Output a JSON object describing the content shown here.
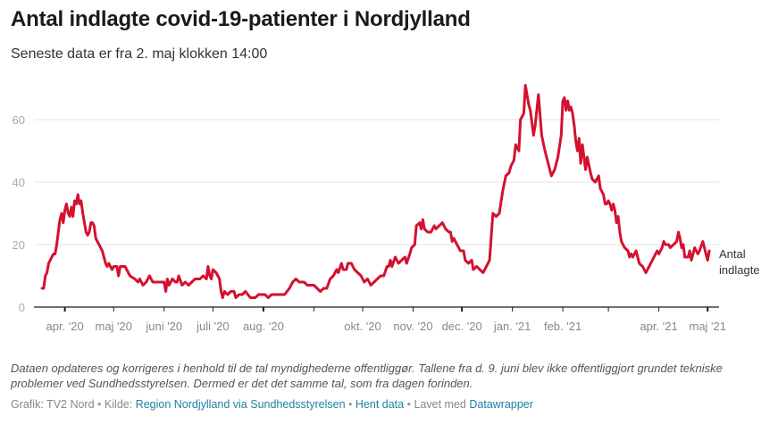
{
  "header": {
    "title": "Antal indlagte covid-19-patienter i Nordjylland",
    "subtitle": "Seneste data er fra 2. maj klokken 14:00"
  },
  "notes": "Dataen opdateres og korrigeres  i henhold til de tal myndighederne offentliggør. Tallene fra d. 9. juni blev ikke offentliggjort grundet tekniske problemer ved Sundhedsstyrelsen. Dermed er det det samme tal, som fra dagen forinden.",
  "footer": {
    "grafik_label": "Grafik: TV2 Nord",
    "kilde_label": "Kilde:",
    "source_link": "Region Nordjylland via Sundhedsstyrelsen",
    "data_link": "Hent data",
    "made_with_label": "Lavet med",
    "tool_link": "Datawrapper",
    "separator": "•"
  },
  "colors": {
    "line": "#d4112f",
    "grid": "#e3e3e3",
    "axis": "#1a1a1a",
    "link": "#1d81a2"
  },
  "chart_data": {
    "type": "line",
    "title": "Antal indlagte covid-19-patienter i Nordjylland",
    "xlabel": "",
    "ylabel": "",
    "ylim": [
      0,
      70
    ],
    "yticks": [
      0,
      20,
      40,
      60
    ],
    "grid": true,
    "xlim": [
      "2020-03-13",
      "2021-05-08"
    ],
    "xticks": [
      {
        "date": "2020-04-01",
        "label": "apr. '20"
      },
      {
        "date": "2020-05-01",
        "label": "maj '20"
      },
      {
        "date": "2020-06-01",
        "label": "juni '20"
      },
      {
        "date": "2020-07-01",
        "label": "juli '20"
      },
      {
        "date": "2020-08-01",
        "label": "aug. '20"
      },
      {
        "date": "2020-09-01",
        "label": ""
      },
      {
        "date": "2020-10-01",
        "label": "okt. '20"
      },
      {
        "date": "2020-11-01",
        "label": "nov. '20"
      },
      {
        "date": "2020-12-01",
        "label": "dec. '20"
      },
      {
        "date": "2021-01-01",
        "label": "jan. '21"
      },
      {
        "date": "2021-02-01",
        "label": "feb. '21"
      },
      {
        "date": "2021-03-01",
        "label": ""
      },
      {
        "date": "2021-04-01",
        "label": "apr. '21"
      },
      {
        "date": "2021-05-01",
        "label": "maj '21"
      }
    ],
    "series": [
      {
        "name": "Antal indlagte",
        "label_lines": [
          "Antal",
          "indlagte"
        ],
        "points": [
          [
            "2020-03-18",
            6
          ],
          [
            "2020-03-19",
            6
          ],
          [
            "2020-03-20",
            10
          ],
          [
            "2020-03-21",
            11
          ],
          [
            "2020-03-22",
            14
          ],
          [
            "2020-03-24",
            16
          ],
          [
            "2020-03-25",
            17
          ],
          [
            "2020-03-26",
            17
          ],
          [
            "2020-03-27",
            20
          ],
          [
            "2020-03-28",
            24
          ],
          [
            "2020-03-29",
            28
          ],
          [
            "2020-03-30",
            30
          ],
          [
            "2020-03-31",
            27
          ],
          [
            "2020-04-01",
            31
          ],
          [
            "2020-04-02",
            33
          ],
          [
            "2020-04-03",
            30
          ],
          [
            "2020-04-04",
            29
          ],
          [
            "2020-04-05",
            32
          ],
          [
            "2020-04-06",
            29
          ],
          [
            "2020-04-07",
            34
          ],
          [
            "2020-04-08",
            33
          ],
          [
            "2020-04-09",
            36
          ],
          [
            "2020-04-10",
            33
          ],
          [
            "2020-04-11",
            34
          ],
          [
            "2020-04-12",
            30
          ],
          [
            "2020-04-13",
            27
          ],
          [
            "2020-04-14",
            24
          ],
          [
            "2020-04-15",
            23
          ],
          [
            "2020-04-16",
            24
          ],
          [
            "2020-04-17",
            27
          ],
          [
            "2020-04-18",
            27
          ],
          [
            "2020-04-19",
            26
          ],
          [
            "2020-04-20",
            22
          ],
          [
            "2020-04-22",
            20
          ],
          [
            "2020-04-24",
            18
          ],
          [
            "2020-04-26",
            14
          ],
          [
            "2020-04-27",
            13
          ],
          [
            "2020-04-28",
            14
          ],
          [
            "2020-04-30",
            12
          ],
          [
            "2020-05-01",
            13
          ],
          [
            "2020-05-03",
            13
          ],
          [
            "2020-05-04",
            10
          ],
          [
            "2020-05-05",
            13
          ],
          [
            "2020-05-08",
            13
          ],
          [
            "2020-05-11",
            10
          ],
          [
            "2020-05-14",
            9
          ],
          [
            "2020-05-16",
            8
          ],
          [
            "2020-05-17",
            9
          ],
          [
            "2020-05-19",
            7
          ],
          [
            "2020-05-21",
            8
          ],
          [
            "2020-05-23",
            10
          ],
          [
            "2020-05-25",
            8
          ],
          [
            "2020-05-28",
            8
          ],
          [
            "2020-06-01",
            8
          ],
          [
            "2020-06-02",
            5
          ],
          [
            "2020-06-03",
            9
          ],
          [
            "2020-06-04",
            7
          ],
          [
            "2020-06-06",
            9
          ],
          [
            "2020-06-08",
            8
          ],
          [
            "2020-06-09",
            8
          ],
          [
            "2020-06-10",
            10
          ],
          [
            "2020-06-12",
            7
          ],
          [
            "2020-06-14",
            8
          ],
          [
            "2020-06-16",
            7
          ],
          [
            "2020-06-18",
            8
          ],
          [
            "2020-06-20",
            9
          ],
          [
            "2020-06-23",
            9
          ],
          [
            "2020-06-25",
            10
          ],
          [
            "2020-06-27",
            9
          ],
          [
            "2020-06-28",
            13
          ],
          [
            "2020-06-29",
            10
          ],
          [
            "2020-06-30",
            9
          ],
          [
            "2020-07-01",
            12
          ],
          [
            "2020-07-03",
            11
          ],
          [
            "2020-07-05",
            9
          ],
          [
            "2020-07-06",
            5
          ],
          [
            "2020-07-07",
            3
          ],
          [
            "2020-07-08",
            5
          ],
          [
            "2020-07-10",
            4
          ],
          [
            "2020-07-12",
            5
          ],
          [
            "2020-07-14",
            5
          ],
          [
            "2020-07-15",
            3
          ],
          [
            "2020-07-17",
            4
          ],
          [
            "2020-07-19",
            4
          ],
          [
            "2020-07-21",
            5
          ],
          [
            "2020-07-24",
            3
          ],
          [
            "2020-07-27",
            3
          ],
          [
            "2020-07-29",
            4
          ],
          [
            "2020-07-31",
            4
          ],
          [
            "2020-08-02",
            4
          ],
          [
            "2020-08-04",
            3
          ],
          [
            "2020-08-06",
            4
          ],
          [
            "2020-08-10",
            4
          ],
          [
            "2020-08-14",
            4
          ],
          [
            "2020-08-17",
            6
          ],
          [
            "2020-08-19",
            8
          ],
          [
            "2020-08-21",
            9
          ],
          [
            "2020-08-23",
            8
          ],
          [
            "2020-08-26",
            8
          ],
          [
            "2020-08-28",
            7
          ],
          [
            "2020-09-01",
            7
          ],
          [
            "2020-09-03",
            6
          ],
          [
            "2020-09-05",
            5
          ],
          [
            "2020-09-07",
            6
          ],
          [
            "2020-09-09",
            6
          ],
          [
            "2020-09-11",
            9
          ],
          [
            "2020-09-13",
            10
          ],
          [
            "2020-09-15",
            12
          ],
          [
            "2020-09-16",
            11
          ],
          [
            "2020-09-18",
            14
          ],
          [
            "2020-09-19",
            12
          ],
          [
            "2020-09-21",
            12
          ],
          [
            "2020-09-22",
            14
          ],
          [
            "2020-09-24",
            14
          ],
          [
            "2020-09-26",
            12
          ],
          [
            "2020-09-28",
            11
          ],
          [
            "2020-09-30",
            10
          ],
          [
            "2020-10-02",
            8
          ],
          [
            "2020-10-04",
            9
          ],
          [
            "2020-10-06",
            7
          ],
          [
            "2020-10-08",
            8
          ],
          [
            "2020-10-10",
            9
          ],
          [
            "2020-10-12",
            10
          ],
          [
            "2020-10-14",
            10
          ],
          [
            "2020-10-16",
            13
          ],
          [
            "2020-10-17",
            13
          ],
          [
            "2020-10-18",
            15
          ],
          [
            "2020-10-19",
            13
          ],
          [
            "2020-10-21",
            16
          ],
          [
            "2020-10-23",
            14
          ],
          [
            "2020-10-25",
            15
          ],
          [
            "2020-10-27",
            16
          ],
          [
            "2020-10-28",
            14
          ],
          [
            "2020-10-30",
            17
          ],
          [
            "2020-10-31",
            19
          ],
          [
            "2020-11-02",
            20
          ],
          [
            "2020-11-03",
            26
          ],
          [
            "2020-11-05",
            27
          ],
          [
            "2020-11-06",
            25
          ],
          [
            "2020-11-07",
            28
          ],
          [
            "2020-11-08",
            25
          ],
          [
            "2020-11-10",
            24
          ],
          [
            "2020-11-12",
            24
          ],
          [
            "2020-11-14",
            26
          ],
          [
            "2020-11-15",
            25
          ],
          [
            "2020-11-17",
            26
          ],
          [
            "2020-11-19",
            27
          ],
          [
            "2020-11-21",
            25
          ],
          [
            "2020-11-23",
            24
          ],
          [
            "2020-11-24",
            24
          ],
          [
            "2020-11-25",
            21
          ],
          [
            "2020-11-26",
            22
          ],
          [
            "2020-11-28",
            20
          ],
          [
            "2020-11-30",
            18
          ],
          [
            "2020-12-02",
            18
          ],
          [
            "2020-12-03",
            15
          ],
          [
            "2020-12-05",
            14
          ],
          [
            "2020-12-07",
            15
          ],
          [
            "2020-12-08",
            12
          ],
          [
            "2020-12-10",
            13
          ],
          [
            "2020-12-12",
            12
          ],
          [
            "2020-12-14",
            11
          ],
          [
            "2020-12-16",
            13
          ],
          [
            "2020-12-18",
            15
          ],
          [
            "2020-12-20",
            30
          ],
          [
            "2020-12-22",
            29
          ],
          [
            "2020-12-24",
            30
          ],
          [
            "2020-12-26",
            37
          ],
          [
            "2020-12-28",
            42
          ],
          [
            "2020-12-30",
            43
          ],
          [
            "2020-12-31",
            45
          ],
          [
            "2021-01-02",
            47
          ],
          [
            "2021-01-03",
            52
          ],
          [
            "2021-01-05",
            50
          ],
          [
            "2021-01-06",
            60
          ],
          [
            "2021-01-08",
            62
          ],
          [
            "2021-01-09",
            71
          ],
          [
            "2021-01-11",
            65
          ],
          [
            "2021-01-12",
            63
          ],
          [
            "2021-01-14",
            55
          ],
          [
            "2021-01-15",
            58
          ],
          [
            "2021-01-17",
            68
          ],
          [
            "2021-01-19",
            55
          ],
          [
            "2021-01-21",
            50
          ],
          [
            "2021-01-22",
            48
          ],
          [
            "2021-01-24",
            44
          ],
          [
            "2021-01-25",
            42
          ],
          [
            "2021-01-27",
            44
          ],
          [
            "2021-01-29",
            48
          ],
          [
            "2021-01-31",
            55
          ],
          [
            "2021-02-01",
            66
          ],
          [
            "2021-02-02",
            67
          ],
          [
            "2021-02-03",
            63
          ],
          [
            "2021-02-04",
            66
          ],
          [
            "2021-02-05",
            63
          ],
          [
            "2021-02-06",
            64
          ],
          [
            "2021-02-07",
            62
          ],
          [
            "2021-02-08",
            58
          ],
          [
            "2021-02-09",
            53
          ],
          [
            "2021-02-10",
            50
          ],
          [
            "2021-02-11",
            54
          ],
          [
            "2021-02-12",
            46
          ],
          [
            "2021-02-13",
            52
          ],
          [
            "2021-02-15",
            44
          ],
          [
            "2021-02-16",
            48
          ],
          [
            "2021-02-18",
            43
          ],
          [
            "2021-02-19",
            41
          ],
          [
            "2021-02-21",
            40
          ],
          [
            "2021-02-23",
            42
          ],
          [
            "2021-02-24",
            38
          ],
          [
            "2021-02-26",
            36
          ],
          [
            "2021-02-27",
            33
          ],
          [
            "2021-02-28",
            33
          ],
          [
            "2021-03-01",
            34
          ],
          [
            "2021-03-02",
            33
          ],
          [
            "2021-03-03",
            31
          ],
          [
            "2021-03-04",
            33
          ],
          [
            "2021-03-05",
            31
          ],
          [
            "2021-03-06",
            27
          ],
          [
            "2021-03-07",
            29
          ],
          [
            "2021-03-08",
            24
          ],
          [
            "2021-03-09",
            21
          ],
          [
            "2021-03-10",
            20
          ],
          [
            "2021-03-11",
            19
          ],
          [
            "2021-03-13",
            18
          ],
          [
            "2021-03-14",
            16
          ],
          [
            "2021-03-15",
            17
          ],
          [
            "2021-03-16",
            16
          ],
          [
            "2021-03-18",
            18
          ],
          [
            "2021-03-19",
            16
          ],
          [
            "2021-03-20",
            14
          ],
          [
            "2021-03-22",
            13
          ],
          [
            "2021-03-24",
            11
          ],
          [
            "2021-03-26",
            13
          ],
          [
            "2021-03-28",
            15
          ],
          [
            "2021-03-30",
            17
          ],
          [
            "2021-03-31",
            18
          ],
          [
            "2021-04-01",
            17
          ],
          [
            "2021-04-03",
            19
          ],
          [
            "2021-04-04",
            21
          ],
          [
            "2021-04-05",
            20
          ],
          [
            "2021-04-07",
            20
          ],
          [
            "2021-04-08",
            19
          ],
          [
            "2021-04-10",
            20
          ],
          [
            "2021-04-12",
            21
          ],
          [
            "2021-04-13",
            24
          ],
          [
            "2021-04-14",
            22
          ],
          [
            "2021-04-15",
            19
          ],
          [
            "2021-04-16",
            20
          ],
          [
            "2021-04-17",
            16
          ],
          [
            "2021-04-19",
            16
          ],
          [
            "2021-04-20",
            18
          ],
          [
            "2021-04-21",
            15
          ],
          [
            "2021-04-23",
            19
          ],
          [
            "2021-04-24",
            18
          ],
          [
            "2021-04-25",
            17
          ],
          [
            "2021-04-26",
            18
          ],
          [
            "2021-04-28",
            21
          ],
          [
            "2021-04-29",
            19
          ],
          [
            "2021-04-30",
            17
          ],
          [
            "2021-05-01",
            15
          ],
          [
            "2021-05-02",
            18
          ]
        ]
      }
    ]
  }
}
